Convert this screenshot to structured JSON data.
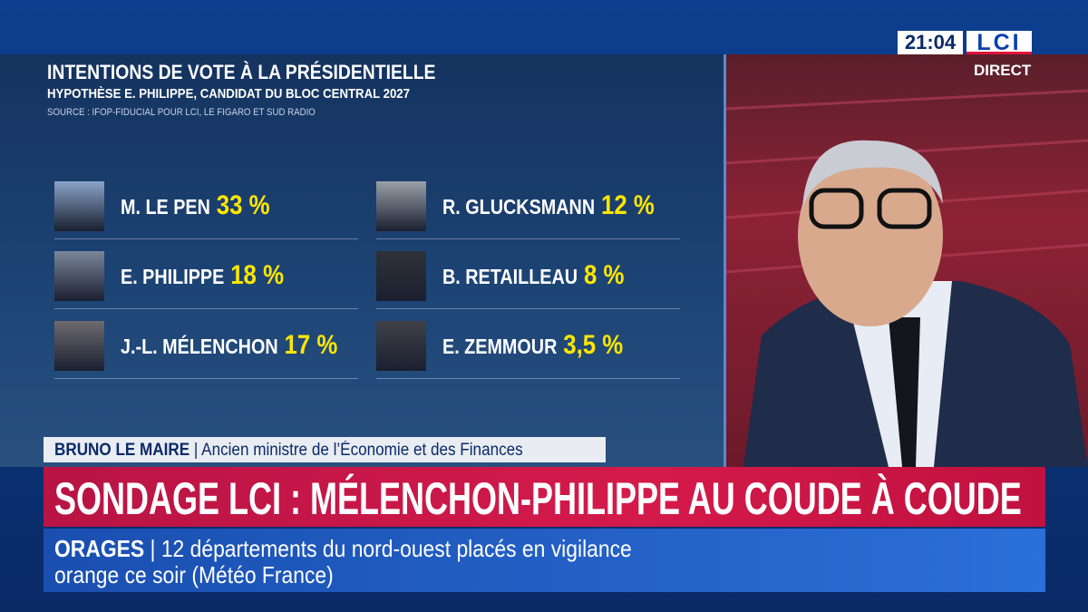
{
  "header": {
    "title": "INTENTIONS DE VOTE À LA PRÉSIDENTIELLE",
    "subtitle": "HYPOTHÈSE E. PHILIPPE, CANDIDAT DU BLOC CENTRAL 2027",
    "source": "SOURCE : IFOP-FIDUCIAL POUR LCI, LE FIGARO ET SUD RADIO"
  },
  "candidates": [
    {
      "name": "M. LE PEN",
      "score": "33 %"
    },
    {
      "name": "E. PHILIPPE",
      "score": "18 %"
    },
    {
      "name": "J.-L. MÉLENCHON",
      "score": "17 %"
    },
    {
      "name": "R. GLUCKSMANN",
      "score": "12 %"
    },
    {
      "name": "B. RETAILLEAU",
      "score": "8 %"
    },
    {
      "name": "E. ZEMMOUR",
      "score": "3,5 %"
    }
  ],
  "broadcast": {
    "clock": "21:04",
    "logo": "LCI",
    "live": "DIRECT"
  },
  "lower_third": {
    "name": "BRUNO LE MAIRE",
    "role": "Ancien ministre de l’Économie et des Finances"
  },
  "headline": "SONDAGE LCI : MÉLENCHON-PHILIPPE AU COUDE À COUDE",
  "ticker": {
    "label": "ORAGES",
    "text_line1": "12 départements du nord-ouest placés en vigilance",
    "text_line2": "orange ce soir (Météo France)"
  }
}
